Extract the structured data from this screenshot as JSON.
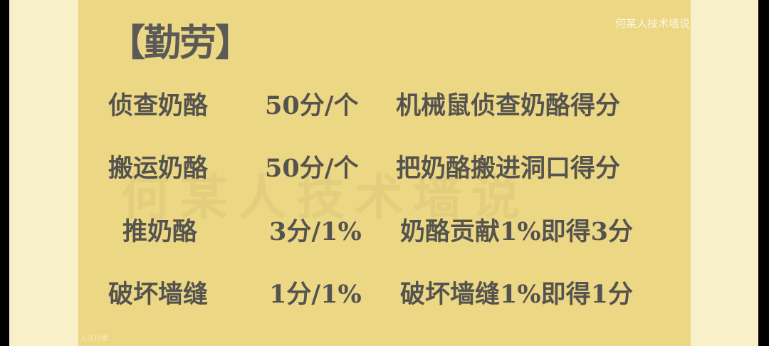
{
  "title": "【勤劳】",
  "watermark": "何某人技术墙说",
  "channel_tag": "何某人技术墙说",
  "bottom_tag": "人江行者",
  "colors": {
    "slide": "#ecd784",
    "side": "#f8f0c8",
    "text": "#55534f"
  },
  "rows": [
    {
      "action": "侦查奶酪",
      "score": "50分/个",
      "desc": "机械鼠侦查奶酪得分"
    },
    {
      "action": "搬运奶酪",
      "score": "50分/个",
      "desc": "把奶酪搬进洞口得分"
    },
    {
      "action": "推奶酪",
      "score": "3分/1%",
      "desc": "奶酪贡献1%即得3分"
    },
    {
      "action": "破坏墙缝",
      "score": "1分/1%",
      "desc": "破坏墙缝1%即得1分"
    }
  ]
}
